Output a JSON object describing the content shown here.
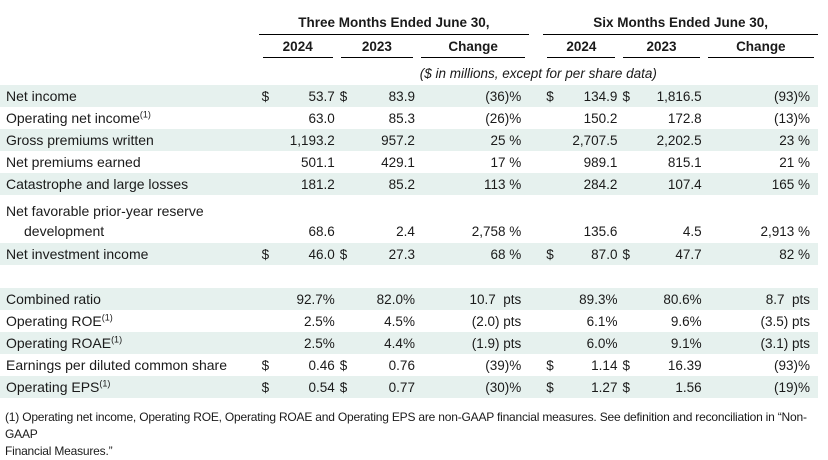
{
  "table": {
    "groups": [
      {
        "label": "Three Months Ended June 30,"
      },
      {
        "label": "Six Months Ended June 30,"
      }
    ],
    "sub_headers": [
      "2024",
      "2023",
      "Change"
    ],
    "units_note": "($ in millions, except for per share data)",
    "rows": [
      {
        "label": "Net income",
        "shaded": true,
        "cells": [
          "$",
          "53.7",
          "$",
          "83.9",
          "(36)%",
          "$",
          "134.9",
          "$",
          "1,816.5",
          "(93)%"
        ]
      },
      {
        "label": "Operating net income",
        "sup": "(1)",
        "shaded": false,
        "cells": [
          "",
          "63.0",
          "",
          "85.3",
          "(26)%",
          "",
          "150.2",
          "",
          "172.8",
          "(13)%"
        ]
      },
      {
        "label": "Gross premiums written",
        "shaded": true,
        "cells": [
          "",
          "1,193.2",
          "",
          "957.2",
          "25 %",
          "",
          "2,707.5",
          "",
          "2,202.5",
          "23 %"
        ]
      },
      {
        "label": "Net premiums earned",
        "shaded": false,
        "cells": [
          "",
          "501.1",
          "",
          "429.1",
          "17 %",
          "",
          "989.1",
          "",
          "815.1",
          "21 %"
        ]
      },
      {
        "label": "Catastrophe and large losses",
        "shaded": true,
        "cells": [
          "",
          "181.2",
          "",
          "85.2",
          "113 %",
          "",
          "284.2",
          "",
          "107.4",
          "165 %"
        ]
      },
      {
        "label": "Net favorable prior-year reserve development",
        "shaded": false,
        "tall": true,
        "cells": [
          "",
          "68.6",
          "",
          "2.4",
          "2,758 %",
          "",
          "135.6",
          "",
          "4.5",
          "2,913 %"
        ]
      },
      {
        "label": "Net investment income",
        "shaded": true,
        "cells": [
          "$",
          "46.0",
          "$",
          "27.3",
          "68 %",
          "$",
          "87.0",
          "$",
          "47.7",
          "82 %"
        ]
      },
      {
        "spacer": true
      },
      {
        "label": "Combined ratio",
        "shaded": true,
        "cells": [
          "",
          "92.7%",
          "",
          "82.0%",
          "10.7  pts",
          "",
          "89.3%",
          "",
          "80.6%",
          "8.7  pts"
        ]
      },
      {
        "label": "Operating ROE",
        "sup": "(1)",
        "shaded": false,
        "cells": [
          "",
          "2.5%",
          "",
          "4.5%",
          "(2.0) pts",
          "",
          "6.1%",
          "",
          "9.6%",
          "(3.5) pts"
        ]
      },
      {
        "label": "Operating ROAE",
        "sup": "(1)",
        "shaded": true,
        "cells": [
          "",
          "2.5%",
          "",
          "4.4%",
          "(1.9) pts",
          "",
          "6.0%",
          "",
          "9.1%",
          "(3.1) pts"
        ]
      },
      {
        "label": "Earnings per diluted common share",
        "shaded": false,
        "cells": [
          "$",
          "0.46",
          "$",
          "0.76",
          "(39)%",
          "$",
          "1.14",
          "$",
          "16.39",
          "(93)%"
        ]
      },
      {
        "label": "Operating EPS",
        "sup": "(1)",
        "shaded": true,
        "cells": [
          "$",
          "0.54",
          "$",
          "0.77",
          "(30)%",
          "$",
          "1.27",
          "$",
          "1.56",
          "(19)%"
        ]
      }
    ]
  },
  "footnote": {
    "lines": [
      "(1) Operating net income, Operating ROE, Operating ROAE and Operating EPS are non-GAAP financial measures. See definition and reconciliation in “Non-GAAP",
      "Financial Measures.”"
    ]
  }
}
